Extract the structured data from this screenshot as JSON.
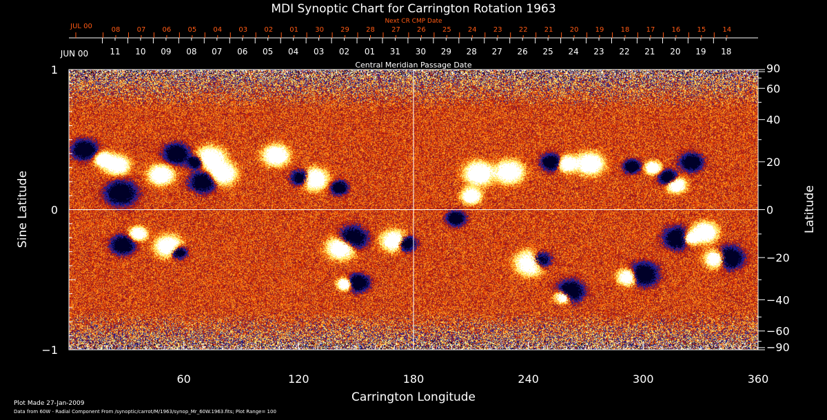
{
  "chart_data": {
    "type": "heatmap",
    "title": "MDI Synoptic Chart for Carrington Rotation 1963",
    "xlabel": "Carrington Longitude",
    "ylabel_left": "Sine Latitude",
    "ylabel_right": "Latitude",
    "xlim": [
      0,
      360
    ],
    "ylim": [
      -1,
      1
    ],
    "x_ticks": [
      60,
      120,
      180,
      240,
      300,
      360
    ],
    "y_ticks_left": [
      {
        "v": 1,
        "label": "1"
      },
      {
        "v": 0,
        "label": "0"
      },
      {
        "v": -1,
        "label": "−1"
      }
    ],
    "y_ticks_right": [
      90,
      60,
      40,
      20,
      0,
      -20,
      -40,
      -60,
      -90
    ],
    "top_axis_cmp": {
      "title": "Central Meridian Passage Date",
      "month_label": "JUN 00",
      "days": [
        "11",
        "10",
        "09",
        "08",
        "07",
        "06",
        "05",
        "04",
        "03",
        "02",
        "01",
        "31",
        "30",
        "29",
        "28",
        "27",
        "26",
        "25",
        "24",
        "23",
        "22",
        "21",
        "20",
        "19",
        "18"
      ]
    },
    "top_axis_next": {
      "title": "Next CR CMP Date",
      "month_label": "JUL 00",
      "days": [
        "08",
        "07",
        "06",
        "05",
        "04",
        "03",
        "02",
        "01",
        "30",
        "29",
        "28",
        "27",
        "26",
        "25",
        "24",
        "23",
        "22",
        "21",
        "20",
        "19",
        "18",
        "17",
        "16",
        "15",
        "14"
      ]
    },
    "colors": {
      "background": "#000000",
      "axis": "#ffffff",
      "next_axis": "#ff5a14",
      "positive": "#ffffff",
      "negative": "#000040",
      "field_low": "#c02000",
      "field_mid": "#ff6a10"
    },
    "plot_range": 100,
    "footer": {
      "plot_made": "Plot Made 27-Jan-2009",
      "data_source": "Data from 60W - Radial Component From /synoptic/carrot/M/1963/synop_Mr_60W.1963.fits; Plot Range=  100"
    },
    "active_regions": [
      {
        "lon": 8,
        "sinlat": 0.43,
        "pol": -1
      },
      {
        "lon": 18,
        "sinlat": 0.36,
        "pol": 1
      },
      {
        "lon": 25,
        "sinlat": 0.32,
        "pol": 1
      },
      {
        "lon": 27,
        "sinlat": 0.12,
        "pol": -1
      },
      {
        "lon": 48,
        "sinlat": 0.25,
        "pol": 1
      },
      {
        "lon": 56,
        "sinlat": 0.4,
        "pol": -1
      },
      {
        "lon": 66,
        "sinlat": 0.34,
        "pol": -1
      },
      {
        "lon": 74,
        "sinlat": 0.37,
        "pol": 1
      },
      {
        "lon": 70,
        "sinlat": 0.2,
        "pol": -1
      },
      {
        "lon": 80,
        "sinlat": 0.26,
        "pol": 1
      },
      {
        "lon": 108,
        "sinlat": 0.39,
        "pol": 1
      },
      {
        "lon": 121,
        "sinlat": 0.23,
        "pol": -1
      },
      {
        "lon": 128,
        "sinlat": 0.22,
        "pol": 1
      },
      {
        "lon": 141,
        "sinlat": 0.16,
        "pol": -1
      },
      {
        "lon": 28,
        "sinlat": -0.25,
        "pol": -1
      },
      {
        "lon": 36,
        "sinlat": -0.17,
        "pol": 1
      },
      {
        "lon": 57,
        "sinlat": -0.3,
        "pol": -1
      },
      {
        "lon": 52,
        "sinlat": -0.26,
        "pol": 1
      },
      {
        "lon": 142,
        "sinlat": -0.27,
        "pol": 1
      },
      {
        "lon": 148,
        "sinlat": -0.2,
        "pol": -1
      },
      {
        "lon": 144,
        "sinlat": -0.53,
        "pol": 1
      },
      {
        "lon": 151,
        "sinlat": -0.52,
        "pol": -1
      },
      {
        "lon": 170,
        "sinlat": -0.22,
        "pol": 1
      },
      {
        "lon": 176,
        "sinlat": -0.24,
        "pol": -1
      },
      {
        "lon": 202,
        "sinlat": -0.06,
        "pol": -1
      },
      {
        "lon": 210,
        "sinlat": 0.1,
        "pol": 1
      },
      {
        "lon": 214,
        "sinlat": 0.26,
        "pol": 1
      },
      {
        "lon": 230,
        "sinlat": 0.27,
        "pol": 1
      },
      {
        "lon": 252,
        "sinlat": 0.34,
        "pol": -1
      },
      {
        "lon": 260,
        "sinlat": 0.33,
        "pol": 1
      },
      {
        "lon": 272,
        "sinlat": 0.33,
        "pol": 1
      },
      {
        "lon": 294,
        "sinlat": 0.31,
        "pol": -1
      },
      {
        "lon": 305,
        "sinlat": 0.3,
        "pol": 1
      },
      {
        "lon": 313,
        "sinlat": 0.23,
        "pol": -1
      },
      {
        "lon": 317,
        "sinlat": 0.18,
        "pol": 1
      },
      {
        "lon": 325,
        "sinlat": 0.34,
        "pol": -1
      },
      {
        "lon": 241,
        "sinlat": -0.38,
        "pol": 1
      },
      {
        "lon": 246,
        "sinlat": -0.36,
        "pol": -1
      },
      {
        "lon": 262,
        "sinlat": -0.58,
        "pol": -1
      },
      {
        "lon": 258,
        "sinlat": -0.62,
        "pol": 1
      },
      {
        "lon": 292,
        "sinlat": -0.48,
        "pol": 1
      },
      {
        "lon": 300,
        "sinlat": -0.46,
        "pol": -1
      },
      {
        "lon": 318,
        "sinlat": -0.2,
        "pol": -1
      },
      {
        "lon": 324,
        "sinlat": -0.2,
        "pol": 1
      },
      {
        "lon": 338,
        "sinlat": -0.35,
        "pol": 1
      },
      {
        "lon": 345,
        "sinlat": -0.34,
        "pol": -1
      },
      {
        "lon": 332,
        "sinlat": -0.16,
        "pol": 1
      }
    ]
  }
}
